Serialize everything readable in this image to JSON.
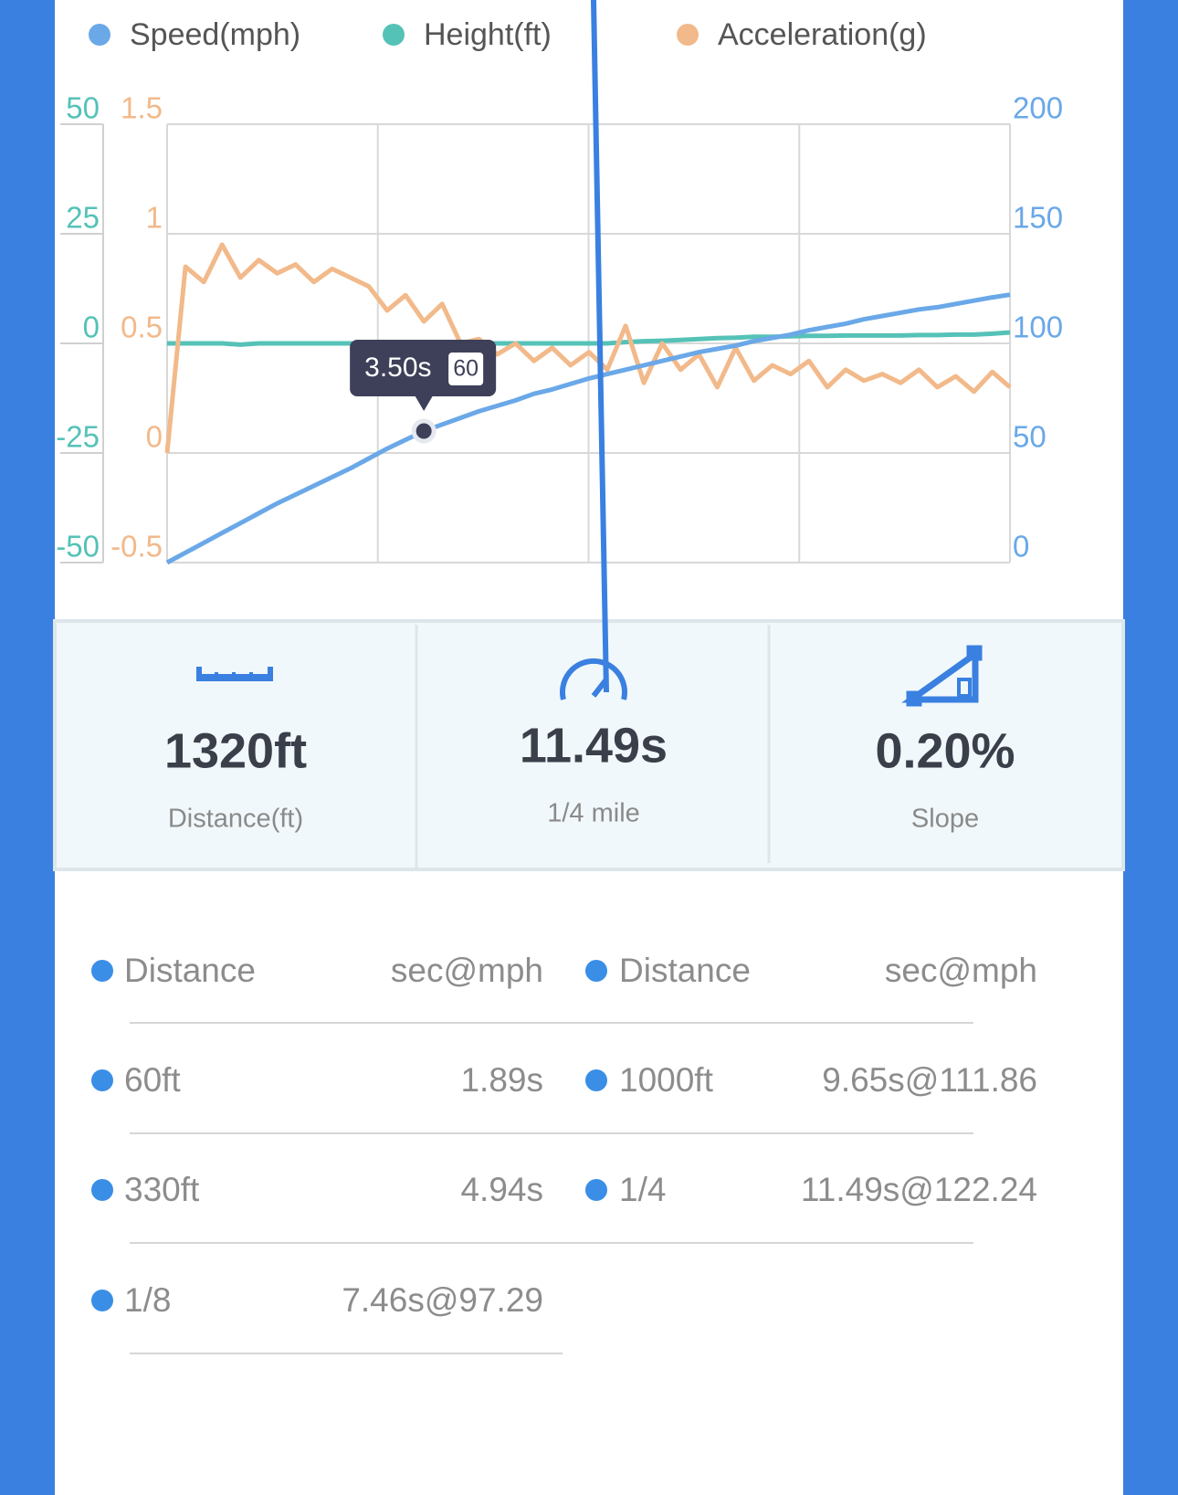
{
  "chart_data": {
    "type": "line",
    "x": [
      0,
      0.25,
      0.5,
      0.75,
      1,
      1.25,
      1.5,
      1.75,
      2,
      2.25,
      2.5,
      2.75,
      3,
      3.25,
      3.5,
      3.75,
      4,
      4.25,
      4.5,
      4.75,
      5,
      5.25,
      5.5,
      5.75,
      6,
      6.25,
      6.5,
      6.75,
      7,
      7.25,
      7.5,
      7.75,
      8,
      8.25,
      8.5,
      8.75,
      9,
      9.25,
      9.5,
      9.75,
      10,
      10.25,
      10.5,
      10.75,
      11,
      11.25,
      11.49
    ],
    "xlim": [
      0,
      11.49
    ],
    "series": [
      {
        "name": "Speed(mph)",
        "color": "#6aa8e8",
        "axis": "y2",
        "values": [
          0,
          4.5,
          9,
          13.5,
          18,
          22.5,
          27,
          31,
          35,
          39,
          43,
          47.5,
          52,
          56,
          60,
          63,
          66,
          69,
          71.5,
          74,
          77,
          79,
          81.5,
          84,
          86,
          88,
          90,
          92,
          94,
          96,
          97.5,
          99,
          101,
          102.5,
          104,
          106,
          107.5,
          109,
          111,
          112.5,
          114,
          115.5,
          116.5,
          118,
          119.5,
          121,
          122.2
        ]
      },
      {
        "name": "Height(ft)",
        "color": "#55c2b7",
        "axis": "y",
        "values": [
          0,
          0,
          0,
          0,
          -0.3,
          0,
          0,
          0,
          0,
          0,
          0,
          0,
          0,
          0,
          0,
          0,
          0,
          0,
          0,
          0,
          0,
          0,
          0,
          0,
          0,
          0.3,
          0.5,
          0.6,
          0.8,
          1,
          1.2,
          1.3,
          1.5,
          1.5,
          1.6,
          1.7,
          1.7,
          1.8,
          1.8,
          1.8,
          1.8,
          1.9,
          1.9,
          2,
          2,
          2.2,
          2.5
        ]
      },
      {
        "name": "Acceleration(g)",
        "color": "#f2b98a",
        "axis": "y3",
        "values": [
          0,
          0.85,
          0.78,
          0.95,
          0.8,
          0.88,
          0.82,
          0.86,
          0.78,
          0.84,
          0.8,
          0.76,
          0.65,
          0.72,
          0.6,
          0.68,
          0.5,
          0.52,
          0.45,
          0.5,
          0.42,
          0.48,
          0.4,
          0.46,
          0.38,
          0.58,
          0.32,
          0.5,
          0.38,
          0.45,
          0.3,
          0.48,
          0.33,
          0.4,
          0.36,
          0.42,
          0.3,
          0.38,
          0.33,
          0.36,
          0.32,
          0.38,
          0.3,
          0.35,
          0.28,
          0.37,
          0.3
        ]
      }
    ],
    "ylim": [
      -50,
      50
    ],
    "yticks": [
      -50,
      -25,
      0,
      25,
      50
    ],
    "y3lim": [
      -0.5,
      1.5
    ],
    "y3ticks": [
      -0.5,
      0,
      0.5,
      1,
      1.5
    ],
    "y2lim": [
      0,
      200
    ],
    "y2ticks": [
      0,
      50,
      100,
      150,
      200
    ],
    "grid": true,
    "tooltip": {
      "x": {
        "value": 3.5,
        "label": "3.50s"
      },
      "y": 60
    }
  },
  "stats": [
    {
      "value": "1320ft",
      "label": "Distance(ft)"
    },
    {
      "value": "11.49s",
      "label": "1/4 mile"
    },
    {
      "value": "0.20%",
      "label": "Slope"
    }
  ],
  "table": {
    "header": [
      "Distance",
      "sec@mph",
      "Distance",
      "sec@mph"
    ],
    "left": [
      [
        "60ft",
        "1.89s"
      ],
      [
        "330ft",
        "4.94s"
      ],
      [
        "1/8",
        "7.46s@97.29"
      ]
    ],
    "right": [
      [
        "1000ft",
        "9.65s@111.86"
      ],
      [
        "1/4",
        "11.49s@122.24"
      ]
    ]
  }
}
